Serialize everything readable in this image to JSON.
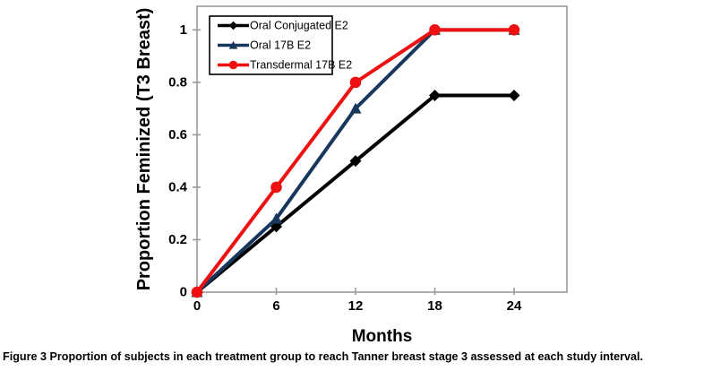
{
  "figure": {
    "caption_label": "Figure 3",
    "caption_text": "Proportion of subjects in each treatment group to reach Tanner breast stage 3 assessed at each study interval."
  },
  "chart_data": {
    "type": "line",
    "title": "",
    "xlabel": "Months",
    "ylabel": "Proportion Feminized (T3 Breast)",
    "x": [
      0,
      6,
      12,
      18,
      24
    ],
    "xlim": [
      0,
      28
    ],
    "ylim": [
      0,
      1.09
    ],
    "x_ticks": [
      0,
      6,
      12,
      18,
      24
    ],
    "y_ticks": [
      0,
      0.2,
      0.4,
      0.6,
      0.8,
      1
    ],
    "grid": false,
    "legend": {
      "position": "top-left-inside",
      "border_color": "#000000",
      "background": "#ffffff"
    },
    "axis_color": "#9a9a9a",
    "series": [
      {
        "name": "Oral Conjugated E2",
        "color": "#000000",
        "marker": "diamond",
        "values": [
          0,
          0.25,
          0.5,
          0.75,
          0.75
        ]
      },
      {
        "name": "Oral 17B E2",
        "color": "#17375D",
        "marker": "triangle",
        "values": [
          0,
          0.28,
          0.7,
          1.0,
          1.0
        ]
      },
      {
        "name": "Transdermal 17B E2",
        "color": "#EE1111",
        "marker": "circle",
        "values": [
          0,
          0.4,
          0.8,
          1.0,
          1.0
        ]
      }
    ]
  }
}
